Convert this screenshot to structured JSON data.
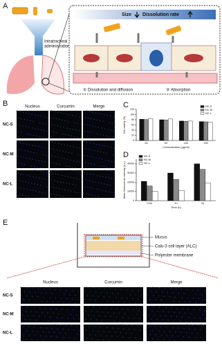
{
  "panel_a": {
    "label": "A",
    "route": [
      "Intratracheal",
      "administration"
    ],
    "size": "Size",
    "rate": "Dissolution rate",
    "step1": "① Dissolution and diffusion",
    "step2": "② Absorption"
  },
  "panel_b": {
    "label": "B",
    "columns": [
      "Nucleus",
      "Curcumin",
      "Merge"
    ],
    "rows": [
      "NC-S",
      "NC-M",
      "NC-L"
    ]
  },
  "chart_data": [
    {
      "type": "bar",
      "panel_label": "C",
      "y_label": "Cell viability (%)",
      "x_label": "Concentration (μg/ml)",
      "categories": [
        "25",
        "50",
        "100",
        "200"
      ],
      "series": [
        {
          "name": "NC-S",
          "color": "#111111",
          "values": [
            82,
            80,
            75,
            73
          ]
        },
        {
          "name": "NC-M",
          "color": "#8a8a8a",
          "values": [
            81,
            79,
            74,
            72
          ]
        },
        {
          "name": "NC-L",
          "color": "#ffffff",
          "values": [
            84,
            83,
            75,
            70
          ]
        }
      ],
      "ylim": [
        0,
        120
      ],
      "yticks": [
        0,
        20,
        40,
        60,
        80,
        100,
        120
      ],
      "legend": "upper-right"
    },
    {
      "type": "bar",
      "panel_label": "D",
      "y_label": "Mean fluorescence intensity (a.u.)",
      "x_label": "Time (h)",
      "categories": [
        "0.5h",
        "1h",
        "2h"
      ],
      "series": [
        {
          "name": "NC-S",
          "color": "#111111",
          "values": [
            21000,
            30000,
            40000
          ]
        },
        {
          "name": "NC-M",
          "color": "#8a8a8a",
          "values": [
            16000,
            23000,
            34000
          ]
        },
        {
          "name": "NC-L",
          "color": "#ffffff",
          "values": [
            10000,
            11000,
            19000
          ]
        }
      ],
      "ylim": [
        0,
        45000
      ],
      "yticks": [
        0,
        10000,
        20000,
        30000,
        40000
      ],
      "legend": "upper-left"
    }
  ],
  "panel_e": {
    "label": "E",
    "layers": [
      "Mucus",
      "Calu-3 cell layer (ALC)",
      "Polyester membrane"
    ],
    "columns": [
      "Nucleus",
      "Curcumin",
      "Merge"
    ],
    "rows": [
      "NC-S",
      "NC-M",
      "NC-L"
    ]
  }
}
